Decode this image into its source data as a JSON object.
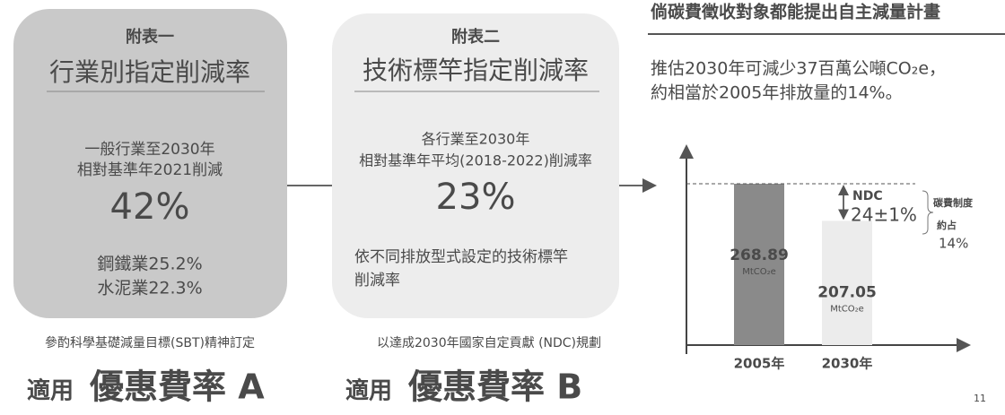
{
  "header": {
    "title": "倘碳費徵收對象都能提出自主減量計畫"
  },
  "card1": {
    "label": "附表一",
    "title": "行業別指定削減率",
    "lines": [
      "一般行業至2030年",
      "相對基準年2021削減"
    ],
    "rate": "42%",
    "sectors": [
      "鋼鐵業25.2%",
      "水泥業22.3%"
    ],
    "note": "參酌科學基礎減量目標(SBT)精神訂定",
    "footer_prefix": "適用",
    "footer": "優惠費率 A"
  },
  "card2": {
    "label": "附表二",
    "title": "技術標竿指定削減率",
    "lines": [
      "各行業至2030年",
      "相對基準年平均(2018-2022)削減率"
    ],
    "rate": "23%",
    "sectors": [
      "依不同排放型式設定的技術標竿",
      "削減率"
    ],
    "note": "以達成2030年國家自定貢獻 (NDC)規劃",
    "footer_prefix": "適用",
    "footer": "優惠費率 B"
  },
  "summary": [
    "推估2030年可減少37百萬公噸CO₂e，",
    "約相當於2005年排放量的14%。"
  ],
  "chart": {
    "type": "bar",
    "categories": [
      "2005年",
      "2030年"
    ],
    "values": [
      268.89,
      207.05
    ],
    "unit": "MtCO₂e",
    "colors": [
      "#8a8a8a",
      "#ececec"
    ],
    "annotation": {
      "label": "NDC",
      "value": "24±1%",
      "note": [
        "碳費制度",
        "約占"
      ],
      "share": "14%"
    }
  },
  "page_number": "11"
}
